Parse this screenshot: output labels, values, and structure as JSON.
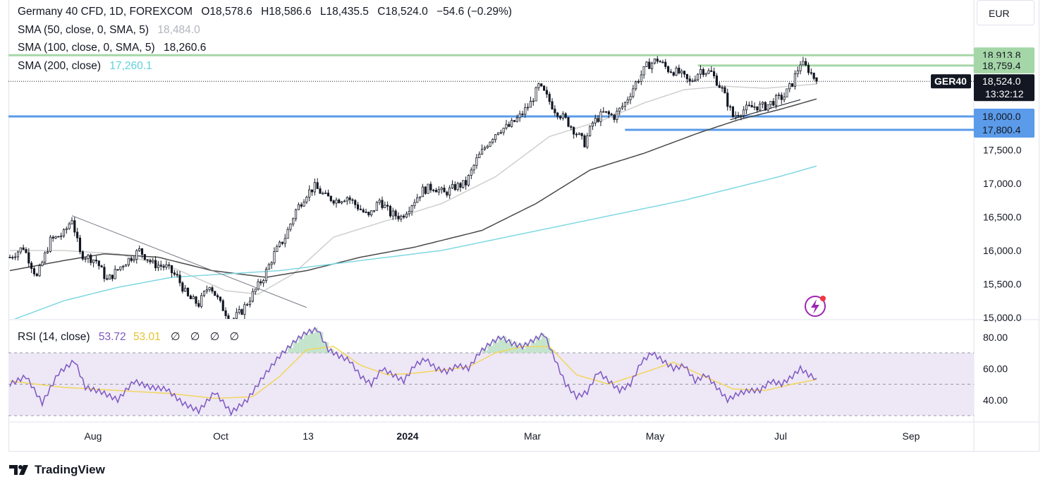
{
  "header": {
    "symbol": "Germany 40 CFD, 1D, FOREXCOM",
    "open": "O18,578.6",
    "high": "H18,586.6",
    "low": "L18,435.5",
    "close": "C18,524.0",
    "change": "−54.6 (−0.29%)"
  },
  "indicators": {
    "sma50_label": "SMA (50, close, 0, SMA, 5)",
    "sma50_value": "18,484.0",
    "sma100_label": "SMA (100, close, 0, SMA, 5)",
    "sma100_value": "18,260.6",
    "sma200_label": "SMA (200, close)",
    "sma200_value": "17,260.1",
    "rsi_label": "RSI (14, close)",
    "rsi_value": "53.72",
    "rsi_ma_value": "53.01",
    "rsi_empty": [
      "∅",
      "∅",
      "∅",
      "∅"
    ]
  },
  "currency": "EUR",
  "ticker_badge": "GER40",
  "branding": "TradingView",
  "colors": {
    "up": "#ffffff",
    "down": "#131722",
    "sma50": "#cfcfcf",
    "sma100": "#4a4a4a",
    "sma200": "#7fd8e2",
    "support_line": "#5b9be9",
    "resistance_line": "#a5d6a7",
    "rsi_line": "#7e57c2",
    "rsi_ma": "#f3d65b",
    "rsi_band": "#ede7f6"
  },
  "chart_data": {
    "type": "candlestick",
    "title": "Germany 40 CFD, 1D, FOREXCOM",
    "price_axis": {
      "range": [
        14950,
        19250
      ],
      "ticks": [
        "17,500.0",
        "17,000.0",
        "16,500.0",
        "16,000.0",
        "15,500.0",
        "15,000.0"
      ],
      "tick_values": [
        17500,
        17000,
        16500,
        16000,
        15500,
        15000
      ]
    },
    "time_axis": {
      "ticks": [
        "Aug",
        "Oct",
        "13",
        "2024",
        "Mar",
        "May",
        "Jul",
        "Sep"
      ]
    },
    "horizontal_levels": [
      {
        "value": 18913.8,
        "label": "18,913.8",
        "kind": "resistance"
      },
      {
        "value": 18759.4,
        "label": "18,759.4",
        "kind": "resistance"
      },
      {
        "value": 18000.0,
        "label": "18,000.0",
        "kind": "support"
      },
      {
        "value": 17800.4,
        "label": "17,800.4",
        "kind": "support"
      }
    ],
    "last_price": {
      "value": 18524.0,
      "label": "18,524.0",
      "countdown": "13:32:12"
    },
    "close_path": [
      [
        0,
        15900
      ],
      [
        5,
        16050
      ],
      [
        10,
        15600
      ],
      [
        15,
        16150
      ],
      [
        20,
        16250
      ],
      [
        23,
        16480
      ],
      [
        26,
        15950
      ],
      [
        32,
        15850
      ],
      [
        36,
        15550
      ],
      [
        42,
        15800
      ],
      [
        48,
        16000
      ],
      [
        53,
        15800
      ],
      [
        58,
        15750
      ],
      [
        62,
        15600
      ],
      [
        66,
        15300
      ],
      [
        70,
        15200
      ],
      [
        74,
        15500
      ],
      [
        78,
        15200
      ],
      [
        82,
        14950
      ],
      [
        86,
        15100
      ],
      [
        90,
        15350
      ],
      [
        94,
        15600
      ],
      [
        98,
        15950
      ],
      [
        102,
        16200
      ],
      [
        106,
        16600
      ],
      [
        110,
        16850
      ],
      [
        113,
        16950
      ],
      [
        117,
        16800
      ],
      [
        121,
        16750
      ],
      [
        125,
        16800
      ],
      [
        129,
        16650
      ],
      [
        133,
        16500
      ],
      [
        137,
        16750
      ],
      [
        141,
        16550
      ],
      [
        145,
        16500
      ],
      [
        149,
        16700
      ],
      [
        153,
        16900
      ],
      [
        157,
        16950
      ],
      [
        161,
        16850
      ],
      [
        165,
        16950
      ],
      [
        169,
        17000
      ],
      [
        173,
        17350
      ],
      [
        177,
        17600
      ],
      [
        181,
        17800
      ],
      [
        185,
        17850
      ],
      [
        189,
        18000
      ],
      [
        193,
        18200
      ],
      [
        196,
        18450
      ],
      [
        198,
        18350
      ],
      [
        202,
        18100
      ],
      [
        206,
        17950
      ],
      [
        210,
        17750
      ],
      [
        213,
        17600
      ],
      [
        216,
        17900
      ],
      [
        220,
        18050
      ],
      [
        224,
        18000
      ],
      [
        228,
        18200
      ],
      [
        232,
        18500
      ],
      [
        236,
        18750
      ],
      [
        240,
        18850
      ],
      [
        244,
        18700
      ],
      [
        248,
        18650
      ],
      [
        252,
        18500
      ],
      [
        256,
        18700
      ],
      [
        260,
        18650
      ],
      [
        264,
        18400
      ],
      [
        268,
        18000
      ],
      [
        272,
        18100
      ],
      [
        276,
        18150
      ],
      [
        280,
        18150
      ],
      [
        284,
        18250
      ],
      [
        287,
        18300
      ],
      [
        290,
        18500
      ],
      [
        293,
        18800
      ],
      [
        296,
        18700
      ],
      [
        299,
        18524
      ]
    ],
    "highs": [
      {
        "i": 23,
        "v": 16520
      },
      {
        "i": 240,
        "v": 18913.8
      },
      {
        "i": 293,
        "v": 18790
      }
    ],
    "series": [
      {
        "name": "SMA (50, close, 0, SMA, 5)",
        "points": [
          [
            0,
            16000
          ],
          [
            20,
            16000
          ],
          [
            40,
            15950
          ],
          [
            60,
            15750
          ],
          [
            80,
            15400
          ],
          [
            92,
            15350
          ],
          [
            105,
            15650
          ],
          [
            120,
            16200
          ],
          [
            140,
            16450
          ],
          [
            160,
            16700
          ],
          [
            180,
            17100
          ],
          [
            200,
            17700
          ],
          [
            220,
            17950
          ],
          [
            235,
            18200
          ],
          [
            250,
            18400
          ],
          [
            265,
            18450
          ],
          [
            280,
            18420
          ],
          [
            299,
            18484
          ]
        ]
      },
      {
        "name": "SMA (100, close, 0, SMA, 5)",
        "points": [
          [
            0,
            15700
          ],
          [
            20,
            15850
          ],
          [
            35,
            15950
          ],
          [
            55,
            15900
          ],
          [
            75,
            15700
          ],
          [
            95,
            15600
          ],
          [
            110,
            15700
          ],
          [
            130,
            15900
          ],
          [
            150,
            16050
          ],
          [
            175,
            16300
          ],
          [
            195,
            16700
          ],
          [
            215,
            17200
          ],
          [
            235,
            17450
          ],
          [
            255,
            17750
          ],
          [
            270,
            17950
          ],
          [
            285,
            18100
          ],
          [
            299,
            18260.6
          ]
        ]
      },
      {
        "name": "SMA (200, close)",
        "points": [
          [
            0,
            14950
          ],
          [
            20,
            15250
          ],
          [
            40,
            15450
          ],
          [
            60,
            15600
          ],
          [
            80,
            15650
          ],
          [
            100,
            15700
          ],
          [
            130,
            15850
          ],
          [
            160,
            16000
          ],
          [
            190,
            16250
          ],
          [
            220,
            16500
          ],
          [
            250,
            16750
          ],
          [
            270,
            16950
          ],
          [
            285,
            17100
          ],
          [
            299,
            17260.1
          ]
        ]
      }
    ],
    "trend_lines": [
      {
        "from": [
          23,
          16520
        ],
        "to": [
          110,
          15150
        ],
        "kind": "downtrend"
      },
      {
        "from": [
          267,
          17950
        ],
        "to": [
          293,
          18250
        ],
        "kind": "uptrend"
      }
    ],
    "rsi": {
      "name": "RSI (14, close)",
      "levels": [
        70,
        50,
        30
      ],
      "axis_ticks": [
        "80.00",
        "60.00",
        "40.00"
      ],
      "axis_values": [
        80,
        60,
        40
      ],
      "range": [
        27,
        86
      ],
      "values": [
        [
          0,
          50
        ],
        [
          6,
          55
        ],
        [
          12,
          38
        ],
        [
          18,
          57
        ],
        [
          24,
          65
        ],
        [
          28,
          48
        ],
        [
          34,
          45
        ],
        [
          40,
          40
        ],
        [
          46,
          52
        ],
        [
          52,
          48
        ],
        [
          58,
          47
        ],
        [
          64,
          38
        ],
        [
          70,
          33
        ],
        [
          76,
          45
        ],
        [
          82,
          32
        ],
        [
          88,
          40
        ],
        [
          94,
          55
        ],
        [
          100,
          68
        ],
        [
          106,
          78
        ],
        [
          110,
          83
        ],
        [
          114,
          85
        ],
        [
          118,
          72
        ],
        [
          122,
          68
        ],
        [
          126,
          65
        ],
        [
          130,
          55
        ],
        [
          134,
          50
        ],
        [
          138,
          60
        ],
        [
          142,
          56
        ],
        [
          146,
          52
        ],
        [
          150,
          62
        ],
        [
          154,
          66
        ],
        [
          158,
          60
        ],
        [
          162,
          58
        ],
        [
          166,
          62
        ],
        [
          170,
          60
        ],
        [
          174,
          70
        ],
        [
          178,
          76
        ],
        [
          182,
          80
        ],
        [
          186,
          76
        ],
        [
          190,
          74
        ],
        [
          194,
          78
        ],
        [
          198,
          82
        ],
        [
          202,
          66
        ],
        [
          206,
          50
        ],
        [
          210,
          42
        ],
        [
          214,
          45
        ],
        [
          218,
          58
        ],
        [
          222,
          52
        ],
        [
          226,
          46
        ],
        [
          230,
          50
        ],
        [
          234,
          64
        ],
        [
          238,
          70
        ],
        [
          242,
          65
        ],
        [
          246,
          60
        ],
        [
          250,
          62
        ],
        [
          254,
          52
        ],
        [
          258,
          56
        ],
        [
          262,
          48
        ],
        [
          266,
          40
        ],
        [
          270,
          44
        ],
        [
          274,
          46
        ],
        [
          278,
          46
        ],
        [
          282,
          52
        ],
        [
          286,
          50
        ],
        [
          290,
          55
        ],
        [
          293,
          60
        ],
        [
          296,
          56
        ],
        [
          299,
          53.72
        ]
      ],
      "ma_values": [
        [
          0,
          52
        ],
        [
          20,
          48
        ],
        [
          40,
          46
        ],
        [
          60,
          44
        ],
        [
          76,
          41
        ],
        [
          90,
          42
        ],
        [
          100,
          55
        ],
        [
          110,
          72
        ],
        [
          120,
          74
        ],
        [
          130,
          62
        ],
        [
          140,
          56
        ],
        [
          150,
          57
        ],
        [
          160,
          59
        ],
        [
          170,
          61
        ],
        [
          180,
          70
        ],
        [
          190,
          74
        ],
        [
          200,
          74
        ],
        [
          210,
          56
        ],
        [
          222,
          50
        ],
        [
          236,
          58
        ],
        [
          246,
          64
        ],
        [
          256,
          56
        ],
        [
          268,
          47
        ],
        [
          280,
          46
        ],
        [
          290,
          50
        ],
        [
          299,
          53.01
        ]
      ]
    }
  }
}
